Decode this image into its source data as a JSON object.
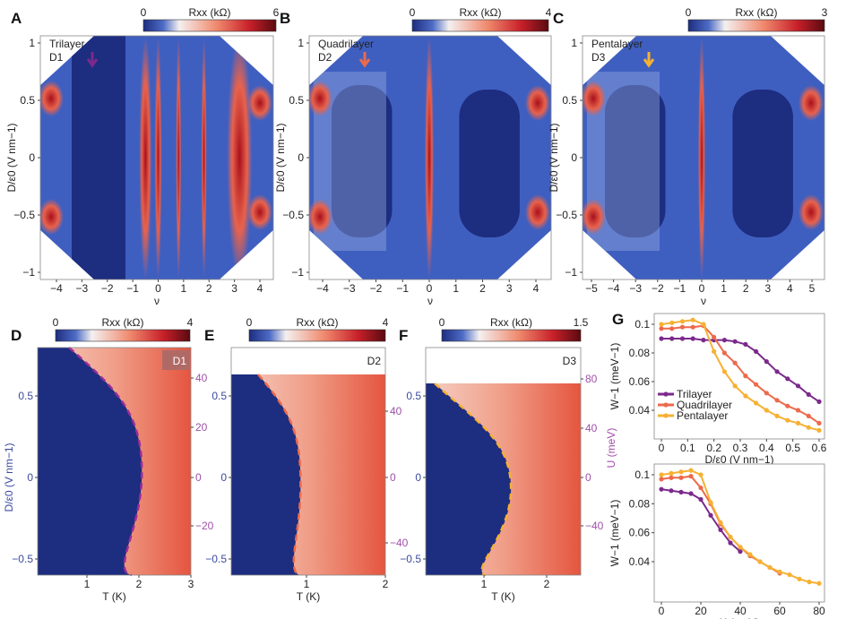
{
  "panels": {
    "A": {
      "letter": "A",
      "title": "Trilayer",
      "device": "D1",
      "cbar_label": "Rxx (kΩ)",
      "cbar_min": "0",
      "cbar_max": "6",
      "xlabel": "ν",
      "ylabel": "D/ε0 (V nm−1)",
      "xticks": [
        "−4",
        "−3",
        "−2",
        "−1",
        "0",
        "1",
        "2",
        "3",
        "4"
      ],
      "yticks": [
        "1",
        "0.5",
        "0",
        "−0.5",
        "−1"
      ]
    },
    "B": {
      "letter": "B",
      "title": "Quadrilayer",
      "device": "D2",
      "cbar_label": "Rxx (kΩ)",
      "cbar_min": "0",
      "cbar_max": "4",
      "xlabel": "ν",
      "ylabel": "D/ε0 (V nm−1)",
      "xticks": [
        "−4",
        "−3",
        "−2",
        "−1",
        "0",
        "1",
        "2",
        "3",
        "4"
      ],
      "yticks": [
        "1",
        "0.5",
        "0",
        "−0.5",
        "−1"
      ]
    },
    "C": {
      "letter": "C",
      "title": "Pentalayer",
      "device": "D3",
      "cbar_label": "Rxx (kΩ)",
      "cbar_min": "0",
      "cbar_max": "3",
      "xlabel": "ν",
      "ylabel": "D/ε0 (V nm−1)",
      "xticks": [
        "−5",
        "−4",
        "−3",
        "−2",
        "−1",
        "0",
        "1",
        "2",
        "3",
        "4",
        "5"
      ],
      "yticks": [
        "1",
        "0.5",
        "0",
        "−0.5",
        "−1"
      ]
    },
    "D": {
      "letter": "D",
      "device": "D1",
      "cbar_label": "Rxx (kΩ)",
      "cbar_min": "0",
      "cbar_max": "4",
      "xlabel": "T (K)",
      "ylabel": "D/ε0 (V nm−1)",
      "xticks": [
        "1",
        "2",
        "3"
      ],
      "yticks": [
        "0.5",
        "0",
        "−0.5"
      ],
      "rticks": [
        "40",
        "20",
        "0",
        "−20"
      ]
    },
    "E": {
      "letter": "E",
      "device": "D2",
      "cbar_label": "Rxx (kΩ)",
      "cbar_min": "0",
      "cbar_max": "4",
      "xlabel": "T (K)",
      "xticks": [
        "1",
        "2"
      ],
      "yticks": [
        "0.5",
        "0",
        "−0.5"
      ],
      "rticks": [
        "40",
        "0",
        "−40"
      ]
    },
    "F": {
      "letter": "F",
      "device": "D3",
      "cbar_label": "Rxx (kΩ)",
      "cbar_min": "0",
      "cbar_max": "1.5",
      "xlabel": "T (K)",
      "rlabel": "U (meV)",
      "xticks": [
        "1",
        "2"
      ],
      "yticks": [
        "0.5",
        "0",
        "−0.5"
      ],
      "rticks": [
        "80",
        "40",
        "0",
        "−40"
      ]
    },
    "G": {
      "letter": "G"
    }
  },
  "chart_data": [
    {
      "type": "line",
      "panel": "G-top",
      "xlabel": "D/ε0 (V nm−1)",
      "ylabel": "W−1 (meV−1)",
      "xlim": [
        0,
        0.6
      ],
      "ylim": [
        0.025,
        0.105
      ],
      "xticks": [
        "0",
        "0.1",
        "0.2",
        "0.3",
        "0.4",
        "0.5",
        "0.6"
      ],
      "yticks": [
        "0.1",
        "0.08",
        "0.06",
        "0.04"
      ],
      "legend": "bottom-left",
      "x": [
        0,
        0.04,
        0.08,
        0.12,
        0.16,
        0.2,
        0.24,
        0.28,
        0.32,
        0.36,
        0.4,
        0.44,
        0.48,
        0.52,
        0.56,
        0.6
      ],
      "series": [
        {
          "name": "Trilayer",
          "color": "#7b2a8c",
          "values": [
            0.09,
            0.09,
            0.09,
            0.09,
            0.089,
            0.089,
            0.089,
            0.088,
            0.086,
            0.081,
            0.074,
            0.067,
            0.062,
            0.057,
            0.051,
            0.046
          ]
        },
        {
          "name": "Quadrilayer",
          "color": "#ec6a4c",
          "values": [
            0.097,
            0.097,
            0.098,
            0.098,
            0.099,
            0.091,
            0.08,
            0.073,
            0.064,
            0.058,
            0.052,
            0.047,
            0.043,
            0.04,
            0.036,
            0.031
          ]
        },
        {
          "name": "Pentalayer",
          "color": "#f6b133",
          "values": [
            0.1,
            0.101,
            0.102,
            0.103,
            0.1,
            0.081,
            0.067,
            0.057,
            0.05,
            0.045,
            0.04,
            0.036,
            0.033,
            0.031,
            0.028,
            0.026
          ]
        }
      ]
    },
    {
      "type": "line",
      "panel": "G-bottom",
      "xlabel": "U (meV)",
      "ylabel": "W−1 (meV−1)",
      "xlim": [
        0,
        80
      ],
      "ylim": [
        0.025,
        0.105
      ],
      "xticks": [
        "0",
        "20",
        "40",
        "60",
        "80"
      ],
      "yticks": [
        "0.1",
        "0.08",
        "0.06",
        "0.04"
      ],
      "series": [
        {
          "name": "Trilayer",
          "color": "#7b2a8c",
          "x": [
            0,
            5,
            10,
            15,
            20,
            25,
            30,
            35,
            40
          ],
          "values": [
            0.09,
            0.089,
            0.088,
            0.087,
            0.083,
            0.072,
            0.062,
            0.053,
            0.047
          ]
        },
        {
          "name": "Quadrilayer",
          "color": "#ec6a4c",
          "x": [
            0,
            5,
            10,
            15,
            20,
            25,
            30,
            35,
            40,
            45,
            50,
            55,
            60
          ],
          "values": [
            0.097,
            0.098,
            0.098,
            0.099,
            0.091,
            0.08,
            0.066,
            0.057,
            0.05,
            0.044,
            0.04,
            0.036,
            0.032
          ]
        },
        {
          "name": "Pentalayer",
          "color": "#f6b133",
          "x": [
            0,
            5,
            10,
            15,
            20,
            25,
            30,
            35,
            40,
            45,
            50,
            55,
            60,
            65,
            70,
            75,
            80
          ],
          "values": [
            0.1,
            0.101,
            0.102,
            0.103,
            0.1,
            0.081,
            0.067,
            0.057,
            0.05,
            0.045,
            0.04,
            0.036,
            0.033,
            0.031,
            0.028,
            0.026,
            0.025
          ]
        }
      ]
    }
  ]
}
